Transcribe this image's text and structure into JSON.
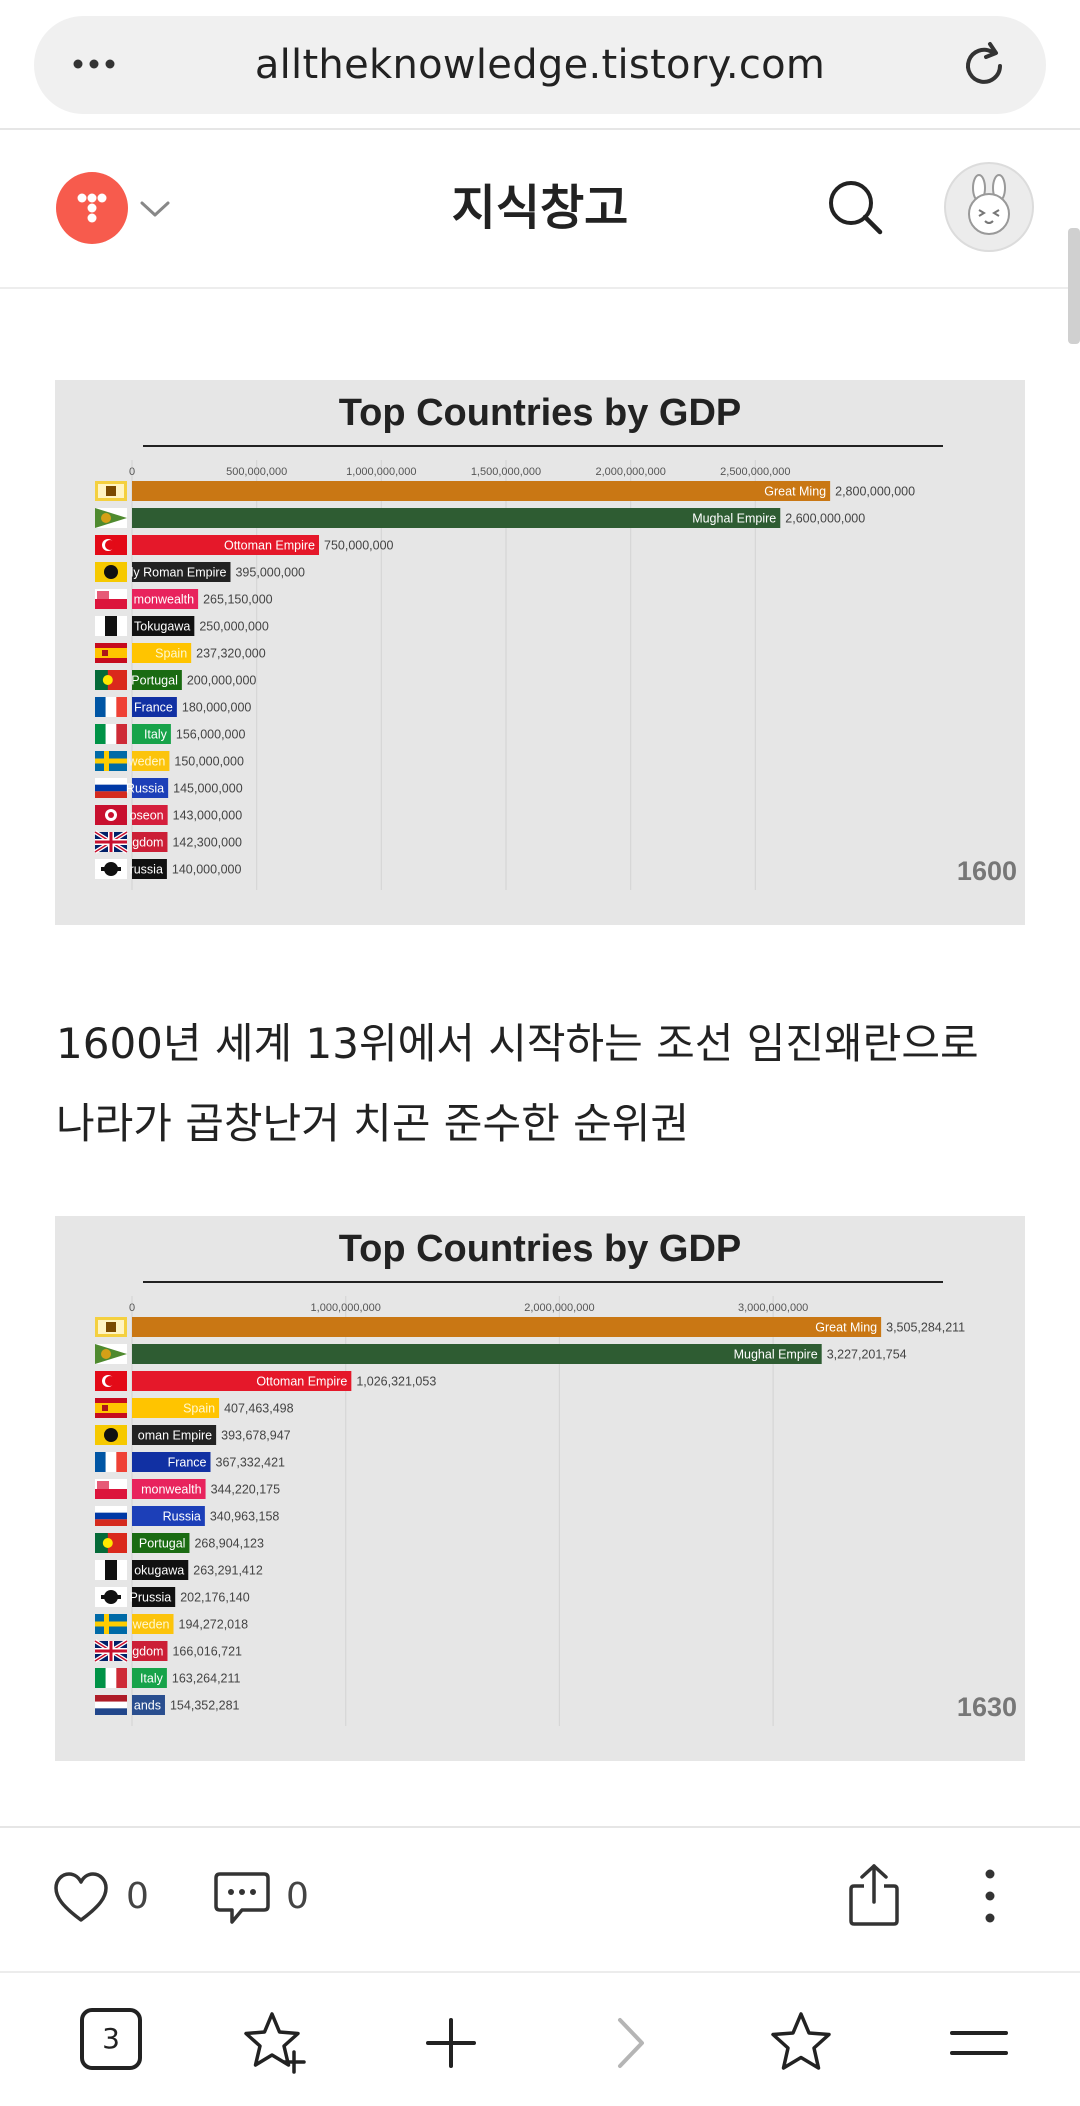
{
  "browser": {
    "url": "alltheknowledge.tistory.com",
    "tab_count": "3"
  },
  "blog": {
    "title": "지식창고"
  },
  "charts": [
    {
      "title": "Top Countries by GDP",
      "year": "1600",
      "xmax": 3000000000,
      "ticks": [
        {
          "v": 0,
          "label": "0"
        },
        {
          "v": 500000000,
          "label": "500,000,000"
        },
        {
          "v": 1000000000,
          "label": "1,000,000,000"
        },
        {
          "v": 1500000000,
          "label": "1,500,000,000"
        },
        {
          "v": 2000000000,
          "label": "2,000,000,000"
        },
        {
          "v": 2500000000,
          "label": "2,500,000,000"
        }
      ],
      "rows": [
        {
          "label": "Great Ming",
          "value": 2800000000,
          "value_text": "2,800,000,000",
          "color": "#c97714",
          "flag": "ming"
        },
        {
          "label": "Mughal Empire",
          "value": 2600000000,
          "value_text": "2,600,000,000",
          "color": "#2e5c32",
          "flag": "mughal"
        },
        {
          "label": "Ottoman Empire",
          "value": 750000000,
          "value_text": "750,000,000",
          "color": "#e5182a",
          "flag": "ottoman"
        },
        {
          "label": "ly Roman Empire",
          "value": 395000000,
          "value_text": "395,000,000",
          "color": "#222222",
          "flag": "hre"
        },
        {
          "label": "monwealth",
          "value": 265150000,
          "value_text": "265,150,000",
          "color": "#e8235d",
          "flag": "plc"
        },
        {
          "label": "Tokugawa",
          "value": 250000000,
          "value_text": "250,000,000",
          "color": "#111111",
          "flag": "tokugawa"
        },
        {
          "label": "Spain",
          "value": 237320000,
          "value_text": "237,320,000",
          "color": "#ffc400",
          "flag": "spain"
        },
        {
          "label": "Portugal",
          "value": 200000000,
          "value_text": "200,000,000",
          "color": "#1a6b12",
          "flag": "portugal"
        },
        {
          "label": "France",
          "value": 180000000,
          "value_text": "180,000,000",
          "color": "#1130a3",
          "flag": "france"
        },
        {
          "label": "Italy",
          "value": 156000000,
          "value_text": "156,000,000",
          "color": "#17a34a",
          "flag": "italy"
        },
        {
          "label": "weden",
          "value": 150000000,
          "value_text": "150,000,000",
          "color": "#fcc40c",
          "flag": "sweden"
        },
        {
          "label": "Russia",
          "value": 145000000,
          "value_text": "145,000,000",
          "color": "#1c3fb8",
          "flag": "russia"
        },
        {
          "label": "oseon",
          "value": 143000000,
          "value_text": "143,000,000",
          "color": "#d51f3c",
          "flag": "joseon"
        },
        {
          "label": "gdom",
          "value": 142300000,
          "value_text": "142,300,000",
          "color": "#cc1f36",
          "flag": "uk"
        },
        {
          "label": "russia",
          "value": 140000000,
          "value_text": "140,000,000",
          "color": "#111111",
          "flag": "prussia"
        }
      ]
    },
    {
      "title": "Top Countries by GDP",
      "year": "1630",
      "xmax": 3500000000,
      "ticks": [
        {
          "v": 0,
          "label": "0"
        },
        {
          "v": 1000000000,
          "label": "1,000,000,000"
        },
        {
          "v": 2000000000,
          "label": "2,000,000,000"
        },
        {
          "v": 3000000000,
          "label": "3,000,000,000"
        }
      ],
      "rows": [
        {
          "label": "Great Ming",
          "value": 3505284211,
          "value_text": "3,505,284,211",
          "color": "#c97714",
          "flag": "ming"
        },
        {
          "label": "Mughal Empire",
          "value": 3227201754,
          "value_text": "3,227,201,754",
          "color": "#2e5c32",
          "flag": "mughal"
        },
        {
          "label": "Ottoman Empire",
          "value": 1026321053,
          "value_text": "1,026,321,053",
          "color": "#e5182a",
          "flag": "ottoman"
        },
        {
          "label": "Spain",
          "value": 407463498,
          "value_text": "407,463,498",
          "color": "#ffc400",
          "flag": "spain"
        },
        {
          "label": "oman Empire",
          "value": 393678947,
          "value_text": "393,678,947",
          "color": "#222222",
          "flag": "hre"
        },
        {
          "label": "France",
          "value": 367332421,
          "value_text": "367,332,421",
          "color": "#1130a3",
          "flag": "france"
        },
        {
          "label": "monwealth",
          "value": 344220175,
          "value_text": "344,220,175",
          "color": "#e8235d",
          "flag": "plc"
        },
        {
          "label": "Russia",
          "value": 340963158,
          "value_text": "340,963,158",
          "color": "#1c3fb8",
          "flag": "russia"
        },
        {
          "label": "Portugal",
          "value": 268904123,
          "value_text": "268,904,123",
          "color": "#1a6b12",
          "flag": "portugal"
        },
        {
          "label": "okugawa",
          "value": 263291412,
          "value_text": "263,291,412",
          "color": "#111111",
          "flag": "tokugawa"
        },
        {
          "label": "Prussia",
          "value": 202176140,
          "value_text": "202,176,140",
          "color": "#111111",
          "flag": "prussia"
        },
        {
          "label": "weden",
          "value": 194272018,
          "value_text": "194,272,018",
          "color": "#fcc40c",
          "flag": "sweden"
        },
        {
          "label": "gdom",
          "value": 166016721,
          "value_text": "166,016,721",
          "color": "#cc1f36",
          "flag": "uk"
        },
        {
          "label": "Italy",
          "value": 163264211,
          "value_text": "163,264,211",
          "color": "#17a34a",
          "flag": "italy"
        },
        {
          "label": "ands",
          "value": 154352281,
          "value_text": "154,352,281",
          "color": "#2a4e8f",
          "flag": "netherlands"
        }
      ]
    }
  ],
  "chart_data": [
    {
      "type": "bar",
      "title": "Top Countries by GDP",
      "annotation": "1600",
      "categories": [
        "Great Ming",
        "Mughal Empire",
        "Ottoman Empire",
        "ly Roman Empire",
        "monwealth",
        "Tokugawa",
        "Spain",
        "Portugal",
        "France",
        "Italy",
        "weden",
        "Russia",
        "oseon",
        "gdom",
        "russia"
      ],
      "values": [
        2800000000,
        2600000000,
        750000000,
        395000000,
        265150000,
        250000000,
        237320000,
        200000000,
        180000000,
        156000000,
        150000000,
        145000000,
        143000000,
        142300000,
        140000000
      ],
      "xlim": [
        0,
        3000000000
      ],
      "orientation": "horizontal",
      "grid": true
    },
    {
      "type": "bar",
      "title": "Top Countries by GDP",
      "annotation": "1630",
      "categories": [
        "Great Ming",
        "Mughal Empire",
        "Ottoman Empire",
        "Spain",
        "oman Empire",
        "France",
        "monwealth",
        "Russia",
        "Portugal",
        "okugawa",
        "Prussia",
        "weden",
        "gdom",
        "Italy",
        "ands"
      ],
      "values": [
        3505284211,
        3227201754,
        1026321053,
        407463498,
        393678947,
        367332421,
        344220175,
        340963158,
        268904123,
        263291412,
        202176140,
        194272018,
        166016721,
        163264211,
        154352281
      ],
      "xlim": [
        0,
        3500000000
      ],
      "orientation": "horizontal",
      "grid": true
    }
  ],
  "post": {
    "paragraph_line1": "1600년 세계 13위에서 시작하는 조선 임진왜란으로",
    "paragraph_line2": "나라가 곱창난거 치곤 준수한 순위권"
  },
  "actions": {
    "like_count": "0",
    "comment_count": "0"
  },
  "icons": {
    "menu": "more-dots-icon",
    "reload": "reload-icon",
    "search": "search-icon",
    "like": "heart-icon",
    "comment": "comment-icon",
    "share": "share-icon",
    "more": "more-vertical-icon",
    "bookmark_add": "star-plus-icon",
    "new_tab": "plus-icon",
    "forward": "chevron-right-icon",
    "bookmarks": "star-icon",
    "menu_nav": "hamburger-icon"
  }
}
